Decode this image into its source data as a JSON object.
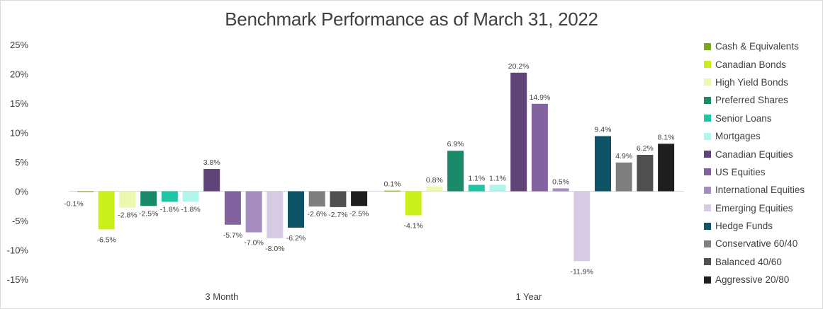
{
  "chart_data": {
    "type": "bar",
    "title": "Benchmark Performance as of March 31, 2022",
    "categories": [
      "3 Month",
      "1 Year"
    ],
    "ylim": [
      -15,
      25
    ],
    "yticks": [
      25,
      20,
      15,
      10,
      5,
      0,
      -5,
      -10,
      -15
    ],
    "ytick_labels": [
      "25%",
      "20%",
      "15%",
      "10%",
      "5%",
      "0%",
      "-5%",
      "-10%",
      "-15%"
    ],
    "grid": false,
    "legend_position": "right",
    "series": [
      {
        "name": "Cash & Equivalents",
        "color": "#7ba81a",
        "values": [
          -0.1,
          0.1
        ],
        "labels": [
          "-0.1%",
          "0.1%"
        ]
      },
      {
        "name": "Canadian Bonds",
        "color": "#c9f01a",
        "values": [
          -6.5,
          -4.1
        ],
        "labels": [
          "-6.5%",
          "-4.1%"
        ]
      },
      {
        "name": "High Yield Bonds",
        "color": "#edf7b0",
        "values": [
          -2.8,
          0.8
        ],
        "labels": [
          "-2.8%",
          "0.8%"
        ]
      },
      {
        "name": "Preferred Shares",
        "color": "#1a8a6a",
        "values": [
          -2.5,
          6.9
        ],
        "labels": [
          "-2.5%",
          "6.9%"
        ]
      },
      {
        "name": "Senior Loans",
        "color": "#1fc4a4",
        "values": [
          -1.8,
          1.1
        ],
        "labels": [
          "-1.8%",
          "1.1%"
        ]
      },
      {
        "name": "Mortgages",
        "color": "#aff5ec",
        "values": [
          -1.8,
          1.1
        ],
        "labels": [
          "-1.8%",
          "1.1%"
        ]
      },
      {
        "name": "Canadian Equities",
        "color": "#5e4479",
        "values": [
          3.8,
          20.2
        ],
        "labels": [
          "3.8%",
          "20.2%"
        ]
      },
      {
        "name": "US Equities",
        "color": "#8362a0",
        "values": [
          -5.7,
          14.9
        ],
        "labels": [
          "-5.7%",
          "14.9%"
        ]
      },
      {
        "name": "International Equities",
        "color": "#a68dbf",
        "values": [
          -7.0,
          0.5
        ],
        "labels": [
          "-7.0%",
          "0.5%"
        ]
      },
      {
        "name": "Emerging Equities",
        "color": "#d6cbe2",
        "values": [
          -8.0,
          -11.9
        ],
        "labels": [
          "-8.0%",
          "-11.9%"
        ]
      },
      {
        "name": "Hedge Funds",
        "color": "#0e5466",
        "values": [
          -6.2,
          9.4
        ],
        "labels": [
          "-6.2%",
          "9.4%"
        ]
      },
      {
        "name": "Conservative 60/40",
        "color": "#7f7f7f",
        "values": [
          -2.6,
          4.9
        ],
        "labels": [
          "-2.6%",
          "4.9%"
        ]
      },
      {
        "name": "Balanced 40/60",
        "color": "#505050",
        "values": [
          -2.7,
          6.2
        ],
        "labels": [
          "-2.7%",
          "6.2%"
        ]
      },
      {
        "name": "Aggressive 20/80",
        "color": "#1f1f1f",
        "values": [
          -2.5,
          8.1
        ],
        "labels": [
          "-2.5%",
          "8.1%"
        ]
      }
    ]
  }
}
